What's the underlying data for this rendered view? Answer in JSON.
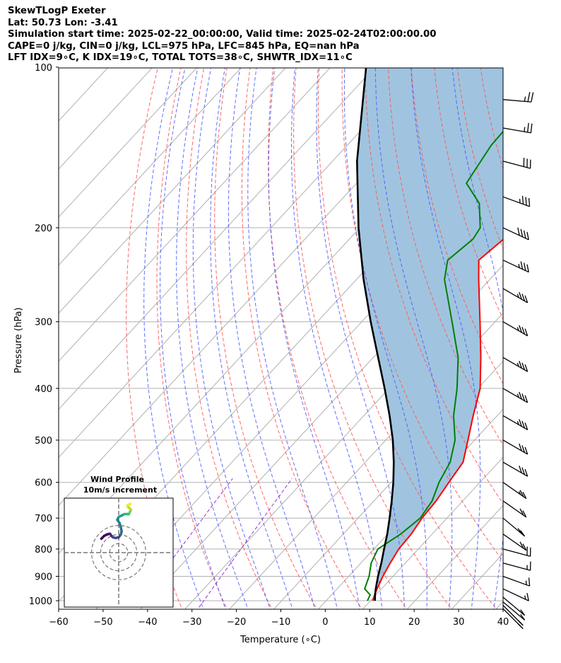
{
  "header": {
    "line1": "SkewTLogP Exeter",
    "line2": "Lat: 50.73   Lon: -3.41",
    "line3": "Simulation start time: 2025-02-22_00:00:00, Valid time: 2025-02-24T02:00:00.00",
    "line4": "CAPE=0 j/kg, CIN=0 j/kg, LCL=975 hPa, LFC=845 hPa, EQ=nan hPa",
    "line5": "LFT IDX=9∘C, K IDX=19∘C, TOTAL TOTS=38∘C, SHWTR_IDX=11∘C"
  },
  "chart_data": {
    "type": "line",
    "subtype": "skew-T log-P",
    "xlabel": "Temperature (∘C)",
    "ylabel": "Pressure (hPa)",
    "xlim": [
      -60,
      40
    ],
    "ylim": [
      1050,
      100
    ],
    "yscale": "log",
    "x_ticks": [
      "−60",
      "−50",
      "−40",
      "−30",
      "−20",
      "−10",
      "0",
      "10",
      "20",
      "30",
      "40"
    ],
    "y_ticks": [
      "100",
      "200",
      "300",
      "400",
      "500",
      "600",
      "700",
      "800",
      "900",
      "1000"
    ],
    "grid": true,
    "series": [
      {
        "role": "temperature",
        "color": "#ff0000",
        "points": [
          [
            1000,
            10.5
          ],
          [
            975,
            9.7
          ],
          [
            950,
            9.0
          ],
          [
            900,
            7.7
          ],
          [
            850,
            6.6
          ],
          [
            800,
            5.6
          ],
          [
            750,
            5.3
          ],
          [
            700,
            4.4
          ],
          [
            650,
            4.0
          ],
          [
            600,
            3.0
          ],
          [
            550,
            2.0
          ],
          [
            500,
            -1.5
          ],
          [
            450,
            -5.4
          ],
          [
            400,
            -9.5
          ],
          [
            350,
            -15.8
          ],
          [
            300,
            -23.4
          ],
          [
            250,
            -32.5
          ],
          [
            230,
            -36.5
          ],
          [
            210,
            -35.3
          ],
          [
            200,
            -33.7
          ],
          [
            180,
            -33.2
          ],
          [
            160,
            -33.5
          ],
          [
            150,
            -34.1
          ],
          [
            140,
            -34.8
          ],
          [
            120,
            -37.8
          ],
          [
            100,
            -41.0
          ]
        ]
      },
      {
        "role": "dewpoint",
        "color": "#008000",
        "points": [
          [
            1000,
            9.3
          ],
          [
            975,
            8.7
          ],
          [
            950,
            6.2
          ],
          [
            900,
            4.6
          ],
          [
            850,
            2.3
          ],
          [
            800,
            0.9
          ],
          [
            750,
            2.9
          ],
          [
            700,
            4.0
          ],
          [
            650,
            3.1
          ],
          [
            600,
            0.8
          ],
          [
            550,
            -0.9
          ],
          [
            500,
            -4.4
          ],
          [
            450,
            -9.8
          ],
          [
            400,
            -14.7
          ],
          [
            350,
            -20.9
          ],
          [
            300,
            -29.7
          ],
          [
            250,
            -40.2
          ],
          [
            230,
            -43.5
          ],
          [
            210,
            -42.2
          ],
          [
            200,
            -42.9
          ],
          [
            180,
            -48.2
          ],
          [
            165,
            -55.3
          ],
          [
            140,
            -57.6
          ],
          [
            120,
            -58.1
          ],
          [
            100,
            -59.0
          ]
        ]
      },
      {
        "role": "parcel",
        "color": "#000000",
        "points": [
          [
            1000,
            11.0
          ],
          [
            975,
            9.8
          ],
          [
            950,
            8.7
          ],
          [
            900,
            6.6
          ],
          [
            850,
            4.6
          ],
          [
            800,
            2.3
          ],
          [
            750,
            -0.1
          ],
          [
            700,
            -2.9
          ],
          [
            650,
            -6.0
          ],
          [
            600,
            -9.5
          ],
          [
            550,
            -13.6
          ],
          [
            500,
            -18.4
          ],
          [
            450,
            -24.2
          ],
          [
            400,
            -31.0
          ],
          [
            350,
            -38.9
          ],
          [
            300,
            -48.0
          ],
          [
            250,
            -58.4
          ],
          [
            200,
            -70.3
          ],
          [
            150,
            -84.5
          ],
          [
            100,
            -102.0
          ]
        ]
      }
    ],
    "wind_barbs": [
      {
        "p": 1035,
        "speed_kt": 15,
        "dir_deg": 225
      },
      {
        "p": 1020,
        "speed_kt": 15,
        "dir_deg": 225
      },
      {
        "p": 1005,
        "speed_kt": 10,
        "dir_deg": 230
      },
      {
        "p": 985,
        "speed_kt": 10,
        "dir_deg": 230
      },
      {
        "p": 950,
        "speed_kt": 15,
        "dir_deg": 245
      },
      {
        "p": 900,
        "speed_kt": 15,
        "dir_deg": 250
      },
      {
        "p": 850,
        "speed_kt": 15,
        "dir_deg": 255
      },
      {
        "p": 800,
        "speed_kt": 20,
        "dir_deg": 255
      },
      {
        "p": 750,
        "speed_kt": 20,
        "dir_deg": 235
      },
      {
        "p": 700,
        "speed_kt": 20,
        "dir_deg": 230
      },
      {
        "p": 650,
        "speed_kt": 20,
        "dir_deg": 235
      },
      {
        "p": 600,
        "speed_kt": 25,
        "dir_deg": 235
      },
      {
        "p": 550,
        "speed_kt": 30,
        "dir_deg": 240
      },
      {
        "p": 500,
        "speed_kt": 30,
        "dir_deg": 240
      },
      {
        "p": 450,
        "speed_kt": 35,
        "dir_deg": 240
      },
      {
        "p": 400,
        "speed_kt": 35,
        "dir_deg": 240
      },
      {
        "p": 350,
        "speed_kt": 35,
        "dir_deg": 240
      },
      {
        "p": 300,
        "speed_kt": 35,
        "dir_deg": 240
      },
      {
        "p": 260,
        "speed_kt": 35,
        "dir_deg": 240
      },
      {
        "p": 230,
        "speed_kt": 35,
        "dir_deg": 245
      },
      {
        "p": 200,
        "speed_kt": 40,
        "dir_deg": 245
      },
      {
        "p": 175,
        "speed_kt": 35,
        "dir_deg": 250
      },
      {
        "p": 150,
        "speed_kt": 30,
        "dir_deg": 255
      },
      {
        "p": 130,
        "speed_kt": 25,
        "dir_deg": 260
      },
      {
        "p": 115,
        "speed_kt": 25,
        "dir_deg": 265
      }
    ],
    "cape_fill_color": "#a0c4df",
    "dry_adiabat_color": "#ff5555",
    "moist_adiabat_color": "#4455ff",
    "mixing_ratio_color": "#9933cc",
    "isotherm_color": "#aaaaaa",
    "inset": {
      "title": "Wind Profile",
      "subtitle": "10m/s increment",
      "hodograph": [
        [
          -12,
          12
        ],
        [
          -10,
          14
        ],
        [
          -8,
          15
        ],
        [
          -6,
          15.5
        ],
        [
          -5,
          14
        ],
        [
          -4,
          13
        ],
        [
          -2,
          12.5
        ],
        [
          0,
          13
        ],
        [
          1.5,
          15
        ],
        [
          2,
          17
        ],
        [
          1.5,
          20
        ],
        [
          0.5,
          23
        ],
        [
          -1,
          25
        ],
        [
          0,
          27
        ],
        [
          2,
          28
        ],
        [
          4,
          29
        ],
        [
          6,
          29
        ],
        [
          7,
          29
        ],
        [
          7.5,
          30
        ],
        [
          8,
          31
        ],
        [
          8.5,
          32
        ],
        [
          7.5,
          33
        ],
        [
          6.5,
          34
        ],
        [
          6,
          35
        ],
        [
          7,
          35.5
        ],
        [
          8,
          36
        ]
      ],
      "rings_ms": [
        10,
        20,
        30
      ]
    }
  }
}
